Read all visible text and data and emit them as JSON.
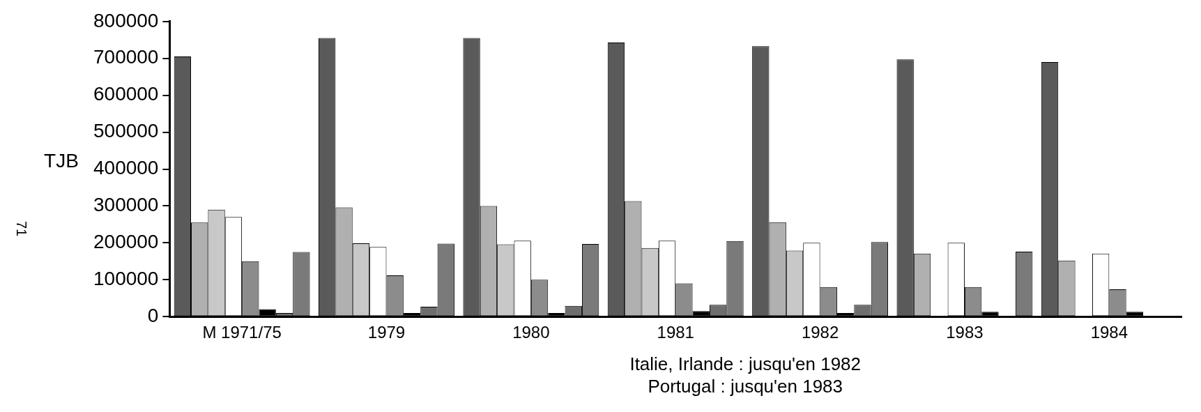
{
  "chart_data": {
    "type": "bar",
    "categories": [
      "M 1971/75",
      "1979",
      "1980",
      "1981",
      "1982",
      "1983",
      "1984"
    ],
    "ylabel": "TJB",
    "ylim": [
      0,
      800000
    ],
    "yticks": [
      0,
      100000,
      200000,
      300000,
      400000,
      500000,
      600000,
      700000,
      800000
    ],
    "grid": false,
    "legend": false,
    "series": [
      {
        "color": "#5a5a5a",
        "values": [
          705000,
          755000,
          755000,
          743000,
          733000,
          697000,
          690000
        ]
      },
      {
        "color": "#b0b0b0",
        "values": [
          255000,
          296000,
          300000,
          313000,
          256000,
          171000,
          152000
        ]
      },
      {
        "color": "#c8c8c8",
        "values": [
          290000,
          199000,
          196000,
          186000,
          179000,
          null,
          null
        ]
      },
      {
        "color": "#ffffff",
        "values": [
          270000,
          189000,
          206000,
          206000,
          200000,
          200000,
          171000
        ]
      },
      {
        "color": "#8c8c8c",
        "values": [
          150000,
          112000,
          100000,
          90000,
          80000,
          80000,
          74000
        ]
      },
      {
        "color": "#000000",
        "values": [
          20000,
          10000,
          10000,
          15000,
          10000,
          13000,
          13000
        ]
      },
      {
        "color": "#6e6e6e",
        "values": [
          10000,
          27000,
          29000,
          32000,
          32000,
          null,
          null
        ]
      },
      {
        "color": "#7a7a7a",
        "values": [
          175000,
          198000,
          197000,
          205000,
          202000,
          176000,
          null
        ]
      }
    ],
    "annotations": [
      "Italie, Irlande : jusqu'en 1982",
      "Portugal : jusqu'en 1983",
      "71"
    ]
  }
}
